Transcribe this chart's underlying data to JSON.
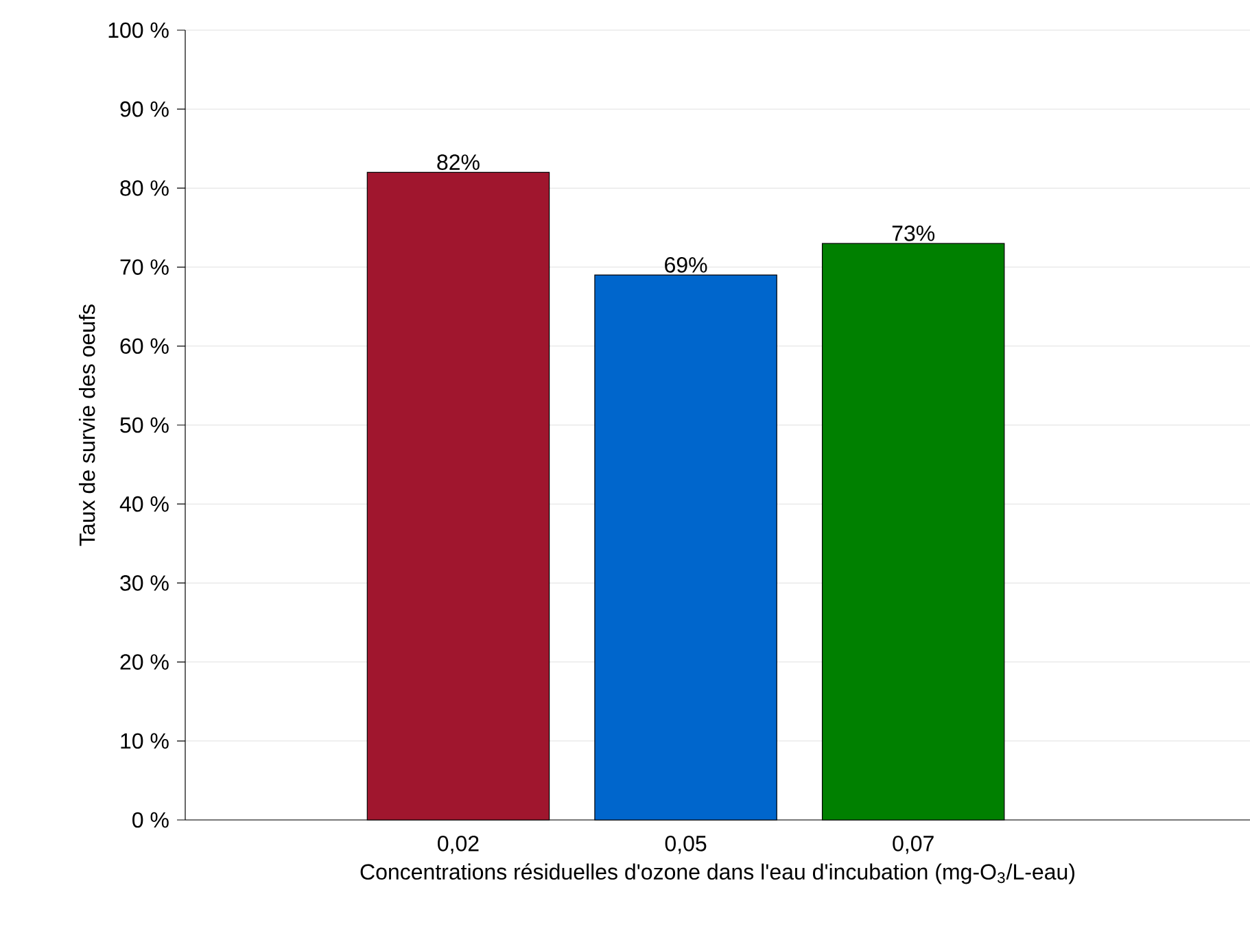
{
  "chart_data": {
    "type": "bar",
    "xlabel": "Concentrations résiduelles d'ozone dans l'eau d'incubation  (mg-O$_{3}$/L-eau)",
    "ylabel": "Taux de survie des oeufs",
    "categories": [
      "0,02",
      "0,05",
      "0,07"
    ],
    "values": [
      82,
      69,
      73
    ],
    "value_labels": [
      "82%",
      "69%",
      "73%"
    ],
    "colors": [
      "#a0162e",
      "#0066cc",
      "#008000"
    ],
    "ylim": [
      0,
      100
    ],
    "yticks": [
      {
        "value": 0,
        "label": "0 %"
      },
      {
        "value": 10,
        "label": "10 %"
      },
      {
        "value": 20,
        "label": "20 %"
      },
      {
        "value": 30,
        "label": "30 %"
      },
      {
        "value": 40,
        "label": "40 %"
      },
      {
        "value": 50,
        "label": "50 %"
      },
      {
        "value": 60,
        "label": "60 %"
      },
      {
        "value": 70,
        "label": "70 %"
      },
      {
        "value": 80,
        "label": "80 %"
      },
      {
        "value": 90,
        "label": "90 %"
      },
      {
        "value": 100,
        "label": "100 %"
      }
    ],
    "grid": "y"
  }
}
